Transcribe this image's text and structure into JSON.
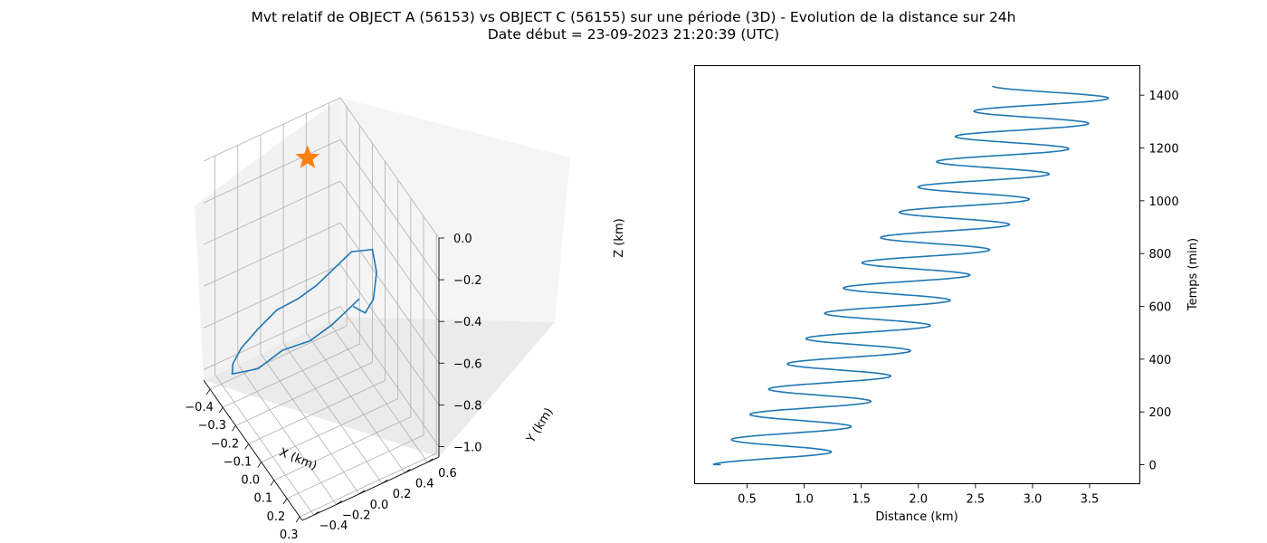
{
  "title_line_1": "Mvt relatif de OBJECT A (56153) vs OBJECT C (56155) sur une période (3D) - Evolution de la distance sur 24h",
  "title_line_2": "Date début = 23-09-2023 21:20:39 (UTC)",
  "colors": {
    "series": "#1f77b4",
    "marker": "#ff7f0e",
    "grid": "#b0b0b0"
  },
  "chart_data": [
    {
      "type": "line3d",
      "xlabel": "X (km)",
      "ylabel": "Y (km)",
      "zlabel": "Z (km)",
      "x_ticks": [
        "−0.4",
        "−0.3",
        "−0.2",
        "−0.1",
        "0.0",
        "0.1",
        "0.2",
        "0.3"
      ],
      "y_ticks": [
        "−0.4",
        "−0.2",
        "0.0",
        "0.2",
        "0.4",
        "0.6"
      ],
      "z_ticks": [
        "0.0",
        "−0.2",
        "−0.4",
        "−0.6",
        "−0.8",
        "−1.0"
      ],
      "xlim": [
        -0.45,
        0.32
      ],
      "ylim": [
        -0.5,
        0.7
      ],
      "zlim": [
        -1.05,
        0.0
      ],
      "grid": true,
      "marker": {
        "shape": "star",
        "x": -0.35,
        "y": 0.3,
        "z": -0.1
      },
      "path": [
        [
          0.05,
          0.25,
          -0.45
        ],
        [
          0.1,
          0.3,
          -0.45
        ],
        [
          0.12,
          0.35,
          -0.38
        ],
        [
          0.1,
          0.4,
          -0.28
        ],
        [
          0.05,
          0.42,
          -0.22
        ],
        [
          -0.05,
          0.35,
          -0.3
        ],
        [
          -0.1,
          0.25,
          -0.4
        ],
        [
          -0.15,
          0.15,
          -0.5
        ],
        [
          -0.2,
          0.05,
          -0.58
        ],
        [
          -0.28,
          -0.05,
          -0.68
        ],
        [
          -0.34,
          -0.15,
          -0.8
        ],
        [
          -0.38,
          -0.25,
          -0.9
        ],
        [
          -0.4,
          -0.3,
          -0.98
        ],
        [
          -0.36,
          -0.35,
          -0.98
        ],
        [
          -0.3,
          -0.35,
          -0.92
        ],
        [
          -0.22,
          -0.28,
          -0.85
        ],
        [
          -0.12,
          -0.18,
          -0.7
        ],
        [
          -0.02,
          -0.05,
          -0.6
        ],
        [
          0.06,
          0.05,
          -0.48
        ],
        [
          0.12,
          0.1,
          -0.38
        ],
        [
          0.16,
          0.18,
          -0.3
        ]
      ]
    },
    {
      "type": "line",
      "xlabel": "Distance (km)",
      "ylabel": "Temps (min)",
      "x_ticks": [
        0.5,
        1.0,
        1.5,
        2.0,
        2.5,
        3.0,
        3.5
      ],
      "y_ticks": [
        0,
        200,
        400,
        600,
        800,
        1000,
        1200,
        1400
      ],
      "xlim": [
        0.04,
        3.94
      ],
      "ylim": [
        -72,
        1512
      ],
      "grid": false,
      "series": [
        {
          "curve": "oscillation",
          "t_range": [
            0,
            1435
          ],
          "period_min": 95.7,
          "min_start": 0.2,
          "min_end": 2.65,
          "max_start": 1.15,
          "max_end": 3.75,
          "start_distance": 0.27,
          "end_distance": 2.82
        }
      ]
    }
  ]
}
